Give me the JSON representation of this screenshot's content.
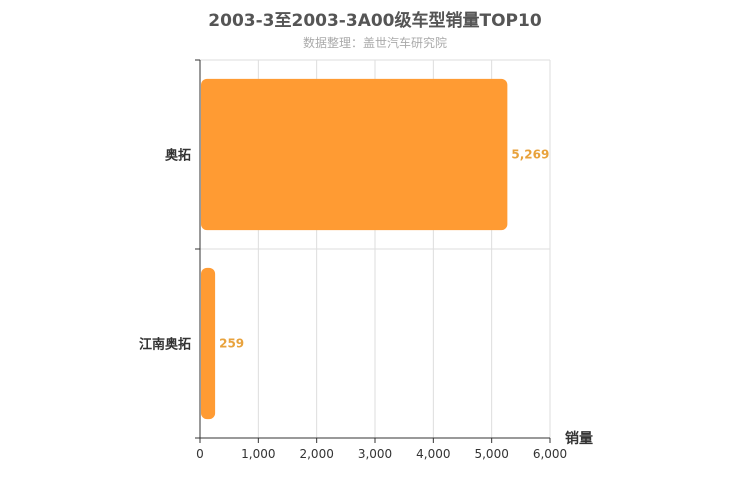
{
  "chart_data": {
    "type": "bar",
    "orientation": "horizontal",
    "title": "2003-3至2003-3A00级车型销量TOP10",
    "subtitle": "数据整理：盖世汽车研究院",
    "categories": [
      "奥拓",
      "江南奥拓"
    ],
    "values": [
      5269,
      259
    ],
    "value_labels": [
      "5,269",
      "259"
    ],
    "xlabel": "销量",
    "xlim": [
      0,
      6000
    ],
    "xticks": [
      0,
      1000,
      2000,
      3000,
      4000,
      5000,
      6000
    ],
    "xtick_labels": [
      "0",
      "1,000",
      "2,000",
      "3,000",
      "4,000",
      "5,000",
      "6,000"
    ],
    "grid": true,
    "colors": {
      "bar": "#ff9b33",
      "label": "#e8a23c",
      "grid": "#dddddd",
      "axis": "#333333"
    }
  }
}
